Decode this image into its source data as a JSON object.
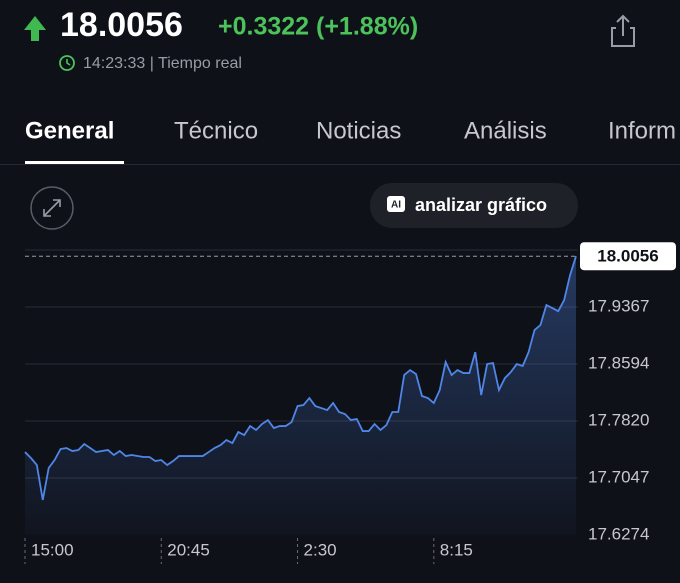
{
  "header": {
    "price": "18.0056",
    "change": "+0.3322 (+1.88%)",
    "time": "14:23:33 | Tiempo real"
  },
  "tabs": [
    "General",
    "Técnico",
    "Noticias",
    "Análisis",
    "Inform"
  ],
  "buttons": {
    "ai_badge": "AI",
    "analyze": "analizar gráfico"
  },
  "chart_data": {
    "type": "line",
    "series": [
      {
        "color": "#4f86e8",
        "values": [
          17.7399,
          17.7318,
          17.7223,
          17.6749,
          17.7183,
          17.7291,
          17.744,
          17.7454,
          17.7413,
          17.7427,
          17.7508,
          17.7454,
          17.7399,
          17.7413,
          17.7427,
          17.7359,
          17.7413,
          17.7345,
          17.7359,
          17.7345,
          17.7332,
          17.7332,
          17.7277,
          17.7291,
          17.7223,
          17.7277,
          17.7345,
          17.7345,
          17.7345,
          17.7345,
          17.7345,
          17.7399,
          17.7454,
          17.7494,
          17.7562,
          17.7522,
          17.7671,
          17.763,
          17.7752,
          17.7698,
          17.7779,
          17.7833,
          17.7725,
          17.7752,
          17.7752,
          17.7806,
          17.8023,
          17.8037,
          17.8132,
          17.8023,
          17.7996,
          17.7969,
          17.8064,
          17.7942,
          17.7915,
          17.7833,
          17.7847,
          17.7684,
          17.7684,
          17.7779,
          17.7698,
          17.7766,
          17.7942,
          17.7942,
          17.8444,
          17.8511,
          17.8457,
          17.8159,
          17.8132,
          17.8064,
          17.824,
          17.862,
          17.8444,
          17.8511,
          17.8471,
          17.8471,
          17.8755,
          17.8172,
          17.8593,
          17.8606,
          17.824,
          17.8403,
          17.8484,
          17.8593,
          17.8566,
          17.8755,
          17.9054,
          17.9122,
          17.9393,
          17.9352,
          17.9311,
          17.9461,
          17.98,
          18.0056
        ]
      }
    ],
    "xlim": [
      0,
      93
    ],
    "xticks": [
      {
        "value": 0,
        "label": "15:00"
      },
      {
        "value": 23,
        "label": "20:45"
      },
      {
        "value": 46,
        "label": "2:30"
      },
      {
        "value": 69,
        "label": "8:15"
      }
    ],
    "ylim": [
      17.6274,
      18.014
    ],
    "yticks": [
      17.6274,
      17.7047,
      {
        "value": 17.782,
        "label": "17.7820"
      },
      17.8594,
      17.9367
    ],
    "grid": true
  }
}
